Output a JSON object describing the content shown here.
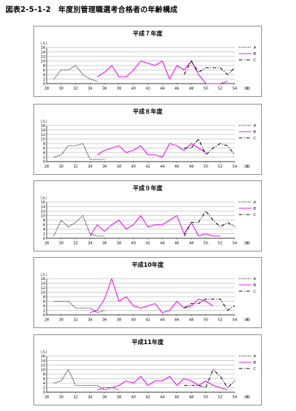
{
  "page": {
    "title": "図表2-5-1-2　年度別管理職選考合格者の年齢構成"
  },
  "common": {
    "y_unit": "（人）",
    "x_unit": "（歳）",
    "y_ticks": [
      "16",
      "14",
      "12",
      "10",
      "8",
      "6",
      "4",
      "2",
      "0"
    ],
    "x_ticks": [
      "28",
      "30",
      "32",
      "34",
      "36",
      "38",
      "40",
      "42",
      "44",
      "46",
      "48",
      "50",
      "52",
      "54"
    ],
    "series_colors": {
      "A": "#000000",
      "B": "#ff00ff",
      "C": "#000000"
    }
  },
  "chart_data": [
    {
      "type": "line",
      "title": "平成７年度",
      "xlim": [
        28,
        54
      ],
      "ylim": [
        0,
        16
      ],
      "series": [
        {
          "name": "A",
          "x": [
            29,
            30,
            31,
            32,
            33,
            34,
            35
          ],
          "y": [
            2,
            6,
            6,
            8,
            4,
            2,
            1
          ]
        },
        {
          "name": "B",
          "x": [
            35,
            36,
            37,
            38,
            39,
            40,
            41,
            42,
            43,
            44,
            45,
            46,
            47,
            48,
            49,
            50,
            51,
            52,
            53
          ],
          "y": [
            3,
            5,
            8,
            3,
            3,
            6,
            10,
            9,
            8,
            10,
            2,
            8,
            6,
            10,
            4,
            0,
            0,
            0,
            1
          ]
        },
        {
          "name": "C",
          "x": [
            47,
            48,
            49,
            50,
            51,
            52,
            53,
            54
          ],
          "y": [
            4,
            10,
            5,
            7,
            7,
            7,
            4,
            7
          ]
        }
      ]
    },
    {
      "type": "line",
      "title": "平成８年度",
      "xlim": [
        28,
        54
      ],
      "ylim": [
        0,
        16
      ],
      "series": [
        {
          "name": "A",
          "x": [
            29,
            30,
            31,
            32,
            33,
            34,
            35,
            36
          ],
          "y": [
            2,
            3,
            7,
            7,
            8,
            1,
            1,
            1
          ]
        },
        {
          "name": "B",
          "x": [
            35,
            36,
            37,
            38,
            39,
            40,
            41,
            42,
            43,
            44,
            45,
            46,
            47,
            48,
            49,
            50
          ],
          "y": [
            3,
            5,
            6,
            7,
            4,
            5,
            7,
            3,
            3,
            2,
            8,
            7,
            5,
            8,
            6,
            4
          ]
        },
        {
          "name": "C",
          "x": [
            47,
            48,
            49,
            50,
            51,
            52,
            53,
            54
          ],
          "y": [
            6,
            6,
            10,
            3,
            6,
            8,
            7,
            3
          ]
        }
      ]
    },
    {
      "type": "line",
      "title": "平成９年度",
      "xlim": [
        28,
        54
      ],
      "ylim": [
        0,
        16
      ],
      "series": [
        {
          "name": "A",
          "x": [
            29,
            30,
            31,
            32,
            33,
            34,
            35,
            36
          ],
          "y": [
            1,
            8,
            5,
            7,
            10,
            2,
            1,
            1
          ]
        },
        {
          "name": "B",
          "x": [
            34,
            35,
            36,
            37,
            38,
            39,
            40,
            41,
            42,
            43,
            44,
            45,
            46,
            47,
            48,
            49,
            50,
            51,
            52
          ],
          "y": [
            1,
            6,
            3,
            6,
            8,
            4,
            6,
            10,
            5,
            6,
            6,
            8,
            10,
            2,
            7,
            1,
            2,
            1,
            1
          ]
        },
        {
          "name": "C",
          "x": [
            47,
            48,
            49,
            50,
            51,
            52,
            53,
            54
          ],
          "y": [
            1,
            7,
            7,
            12,
            8,
            5,
            7,
            5
          ]
        }
      ]
    },
    {
      "type": "line",
      "title": "平成10年度",
      "xlim": [
        28,
        54
      ],
      "ylim": [
        0,
        16
      ],
      "series": [
        {
          "name": "A",
          "x": [
            29,
            30,
            31,
            32,
            33,
            34,
            35,
            36
          ],
          "y": [
            6,
            6,
            6,
            3,
            3,
            3,
            1,
            2
          ]
        },
        {
          "name": "B",
          "x": [
            34,
            35,
            36,
            37,
            38,
            39,
            40,
            41,
            42,
            43,
            44,
            45,
            46,
            47,
            48,
            49,
            50,
            51
          ],
          "y": [
            1,
            2,
            7,
            16,
            6,
            8,
            4,
            3,
            4,
            5,
            1,
            2,
            6,
            3,
            4,
            7,
            6,
            4
          ]
        },
        {
          "name": "C",
          "x": [
            47,
            48,
            49,
            50,
            51,
            52,
            53,
            54
          ],
          "y": [
            3,
            5,
            5,
            7,
            7,
            7,
            2,
            4
          ]
        }
      ]
    },
    {
      "type": "line",
      "title": "平成11年度",
      "xlim": [
        28,
        54
      ],
      "ylim": [
        0,
        16
      ],
      "series": [
        {
          "name": "A",
          "x": [
            29,
            30,
            31,
            32,
            33,
            34,
            35,
            36,
            37,
            38
          ],
          "y": [
            4,
            5,
            10,
            3,
            3,
            3,
            3,
            1,
            2,
            1
          ]
        },
        {
          "name": "B",
          "x": [
            35,
            36,
            37,
            38,
            39,
            40,
            41,
            42,
            43,
            44,
            45,
            46,
            47,
            48,
            49,
            50,
            51,
            52,
            53
          ],
          "y": [
            1,
            2,
            2,
            3,
            5,
            4,
            7,
            3,
            5,
            5,
            7,
            3,
            6,
            5,
            3,
            5,
            3,
            2,
            1
          ]
        },
        {
          "name": "C",
          "x": [
            47,
            48,
            49,
            50,
            51,
            52,
            53,
            54
          ],
          "y": [
            3,
            3,
            3,
            2,
            10,
            7,
            2,
            5
          ]
        }
      ]
    }
  ]
}
